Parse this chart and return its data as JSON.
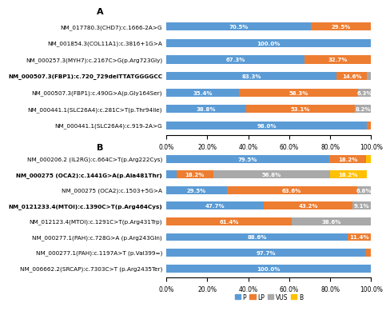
{
  "panel_A": {
    "labels": [
      "NM_017780.3(CHD7):c.1666-2A>G",
      "NM_001854.3(COL11A1):c.3816+1G>A",
      "NM_000257.3(MYH7):c.2167C>G(p.Arg723Gly)",
      "NM_000507.3(FBP1):c.720_729delTTATGGGGCC",
      "NM_000507.3(FBP1):c.490G>A(p.Gly164Ser)",
      "NM_000441.1(SLC26A4):c.281C>T(p.Thr94Ile)",
      "NM_000441.1(SLC26A4):c.919-2A>G"
    ],
    "bold_labels": [
      3
    ],
    "P": [
      70.5,
      100.0,
      67.3,
      83.3,
      35.4,
      38.8,
      98.0
    ],
    "LP": [
      29.5,
      0.0,
      32.7,
      14.6,
      58.3,
      53.1,
      2.0
    ],
    "VUS": [
      0.0,
      0.0,
      0.0,
      2.1,
      6.3,
      8.2,
      0.0
    ],
    "B": [
      0.0,
      0.0,
      0.0,
      0.0,
      0.0,
      0.0,
      0.0
    ]
  },
  "panel_B": {
    "labels": [
      "NM_000206.2 (IL2RG):c.664C>T(p.Arg222Cys)",
      "NM_000275 (OCA2):c.1441G>A(p.Ala481Thr)",
      "NM_000275 (OCA2):c.1503+5G>A",
      "NM_0121233.4(MTOI):c.1390C>T(p.Arg464Cys)",
      "NM_012123.4(MTOI):c.1291C>T(p.Arg431Trp)",
      "NM_000277.1(PAH):c.728G>A (p.Arg243Gln)",
      "NM_000277.1(PAH):c.1197A>T (p.Val399=)",
      "NM_006662.2(SRCAP):c.7303C>T (p.Arg2435Ter)"
    ],
    "bold_labels": [
      1,
      3
    ],
    "P": [
      79.5,
      4.8,
      29.5,
      47.7,
      0.0,
      88.6,
      97.7,
      100.0
    ],
    "LP": [
      18.2,
      18.2,
      63.6,
      43.2,
      61.4,
      11.4,
      2.3,
      0.0
    ],
    "VUS": [
      0.0,
      56.8,
      6.8,
      9.1,
      38.6,
      0.0,
      0.0,
      0.0
    ],
    "B": [
      2.3,
      18.2,
      0.0,
      0.0,
      0.0,
      0.0,
      0.0,
      0.0
    ]
  },
  "colors": {
    "P": "#5B9BD5",
    "LP": "#ED7D31",
    "VUS": "#A9A9A9",
    "B": "#FFC000"
  },
  "bar_height": 0.5,
  "fontsize_label": 5.2,
  "fontsize_tick": 5.5,
  "fontsize_value": 5.0
}
